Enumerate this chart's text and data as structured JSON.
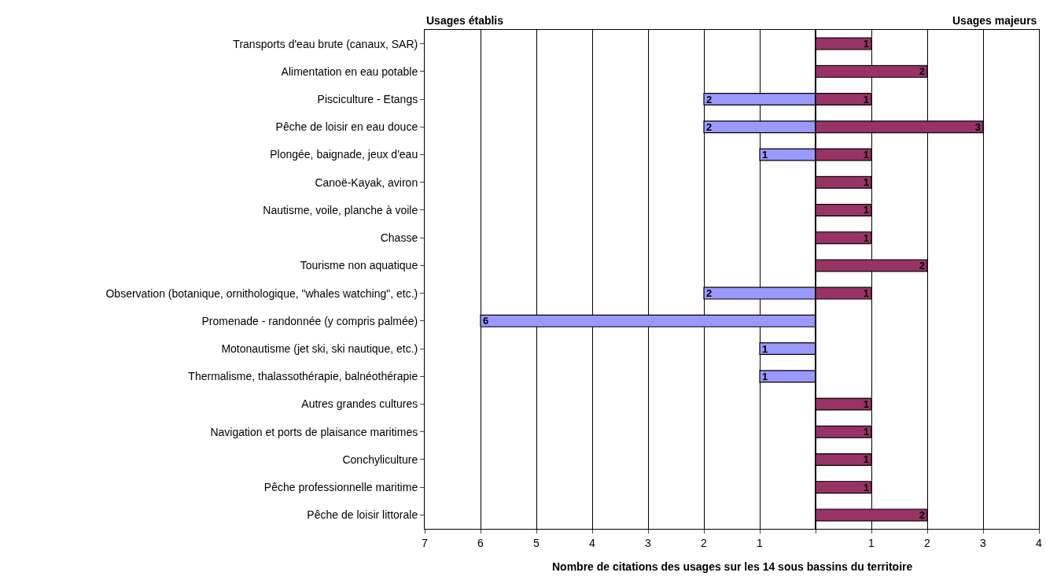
{
  "chart_data": [
    {
      "type": "bar",
      "orientation": "horizontal",
      "xlabel": "Nombre de citations des usages sur les 14 sous bassins du territoire",
      "annotations": [
        "Usages établis"
      ],
      "categories": [
        "Transports d'eau brute (canaux, SAR)",
        "Alimentation en eau potable",
        "Pisciculture - Etangs",
        "Pêche de loisir en eau douce",
        "Plongée, baignade, jeux d'eau",
        "Canoë-Kayak, aviron",
        "Nautisme, voile, planche à voile",
        "Chasse",
        "Tourisme non aquatique",
        "Observation (botanique, ornithologique, \"whales watching\", etc.)",
        "Promenade - randonnée (y compris palmée)",
        "Motonautisme (jet ski, ski nautique, etc.)",
        "Thermalisme, thalassothérapie, balnéothérapie",
        "Autres grandes cultures",
        "Navigation et ports de plaisance maritimes",
        "Conchyliculture",
        "Pêche professionnelle maritime",
        "Pêche de loisir littorale"
      ],
      "series": [
        {
          "color": "#9999ff",
          "values": [
            null,
            null,
            2,
            2,
            1,
            null,
            null,
            null,
            null,
            2,
            6,
            1,
            1,
            null,
            null,
            null,
            null,
            null
          ]
        }
      ],
      "data_labels": true,
      "xlim": [
        7,
        0
      ],
      "xticks": [
        7,
        6,
        5,
        4,
        3,
        2,
        1,
        {
          "value": 0,
          "label": null
        }
      ],
      "grid": "x"
    },
    {
      "type": "bar",
      "orientation": "horizontal",
      "annotations": [
        "Usages majeurs"
      ],
      "categories": [
        null,
        null,
        null,
        null,
        null,
        null,
        null,
        null,
        null,
        null,
        null,
        null,
        null,
        null,
        null,
        null,
        null,
        null
      ],
      "series": [
        {
          "color": "#993366",
          "values": [
            1,
            2,
            1,
            3,
            1,
            1,
            1,
            1,
            2,
            1,
            null,
            null,
            null,
            1,
            1,
            1,
            1,
            2
          ]
        }
      ],
      "data_labels": true,
      "xlim": [
        0,
        4
      ],
      "xticks": [
        {
          "value": 0,
          "label": null
        },
        1,
        2,
        3,
        4
      ],
      "tick_labels": "x",
      "grid": "x"
    }
  ]
}
